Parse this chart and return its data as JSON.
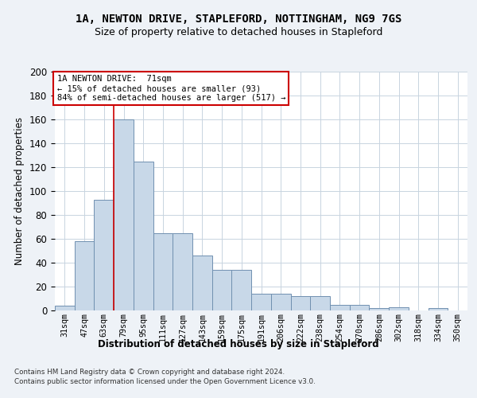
{
  "title1": "1A, NEWTON DRIVE, STAPLEFORD, NOTTINGHAM, NG9 7GS",
  "title2": "Size of property relative to detached houses in Stapleford",
  "xlabel": "Distribution of detached houses by size in Stapleford",
  "ylabel": "Number of detached properties",
  "categories": [
    "31sqm",
    "47sqm",
    "63sqm",
    "79sqm",
    "95sqm",
    "111sqm",
    "127sqm",
    "143sqm",
    "159sqm",
    "175sqm",
    "191sqm",
    "206sqm",
    "222sqm",
    "238sqm",
    "254sqm",
    "270sqm",
    "286sqm",
    "302sqm",
    "318sqm",
    "334sqm",
    "350sqm"
  ],
  "values": [
    4,
    58,
    93,
    160,
    125,
    65,
    65,
    46,
    34,
    34,
    14,
    14,
    12,
    12,
    5,
    5,
    2,
    3,
    0,
    2,
    0
  ],
  "bar_color": "#c8d8e8",
  "bar_edge_color": "#7090b0",
  "vline_color": "#cc0000",
  "annotation_text": "1A NEWTON DRIVE:  71sqm\n← 15% of detached houses are smaller (93)\n84% of semi-detached houses are larger (517) →",
  "annotation_box_color": "white",
  "annotation_box_edge_color": "#cc0000",
  "ylim": [
    0,
    200
  ],
  "yticks": [
    0,
    20,
    40,
    60,
    80,
    100,
    120,
    140,
    160,
    180,
    200
  ],
  "footer1": "Contains HM Land Registry data © Crown copyright and database right 2024.",
  "footer2": "Contains public sector information licensed under the Open Government Licence v3.0.",
  "bg_color": "#eef2f7",
  "plot_bg_color": "#ffffff",
  "grid_color": "#c8d4e0",
  "title_fontsize": 10,
  "subtitle_fontsize": 9
}
